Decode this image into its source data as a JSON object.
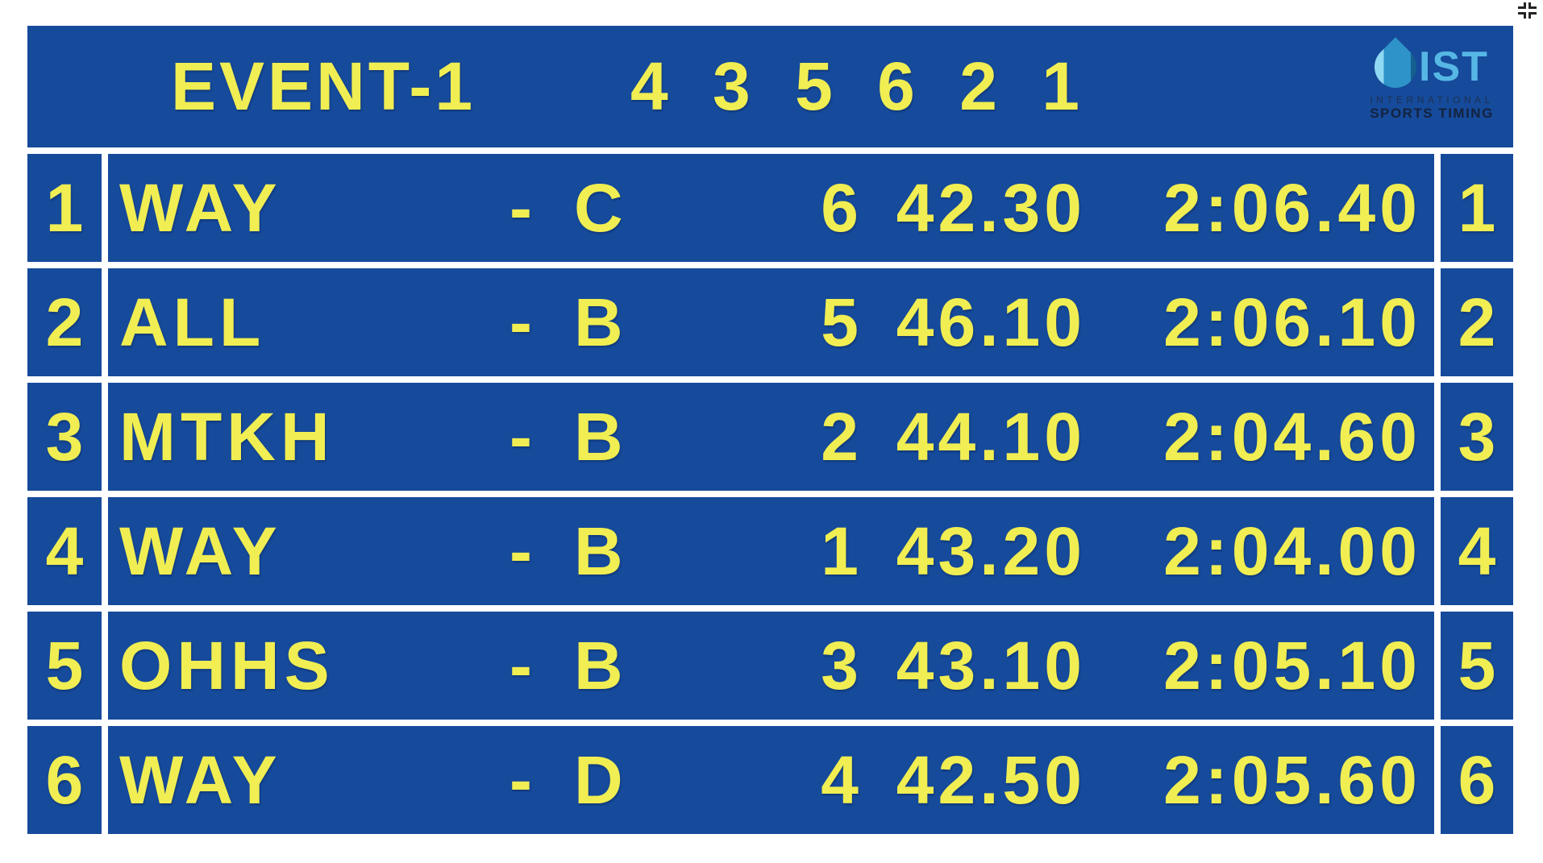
{
  "colors": {
    "board_background": "#164A9B",
    "board_text": "#F0EE52",
    "divider": "#FFFFFF",
    "logo_abbr_blue": "#56B7E5",
    "logo_text_navy": "#14233E"
  },
  "icons": {
    "corner_icon": "collapse-corners-icon",
    "logo_icon": "water-drop-icon"
  },
  "header": {
    "event_label": "EVENT-1",
    "lane_order": "4 3 5 6 2 1",
    "logo": {
      "abbr": "IST",
      "line1": "INTERNATIONAL",
      "line2": "SPORTS TIMING"
    }
  },
  "board": {
    "rows": [
      {
        "place": "1",
        "team": "WAY",
        "sep": "-",
        "squad": "C",
        "lane": "6",
        "split": "42.30",
        "time": "2:06.40",
        "position": "1"
      },
      {
        "place": "2",
        "team": "ALL",
        "sep": "-",
        "squad": "B",
        "lane": "5",
        "split": "46.10",
        "time": "2:06.10",
        "position": "2"
      },
      {
        "place": "3",
        "team": "MTKH",
        "sep": "-",
        "squad": "B",
        "lane": "2",
        "split": "44.10",
        "time": "2:04.60",
        "position": "3"
      },
      {
        "place": "4",
        "team": "WAY",
        "sep": "-",
        "squad": "B",
        "lane": "1",
        "split": "43.20",
        "time": "2:04.00",
        "position": "4"
      },
      {
        "place": "5",
        "team": "OHHS",
        "sep": "-",
        "squad": "B",
        "lane": "3",
        "split": "43.10",
        "time": "2:05.10",
        "position": "5"
      },
      {
        "place": "6",
        "team": "WAY",
        "sep": "-",
        "squad": "D",
        "lane": "4",
        "split": "42.50",
        "time": "2:05.60",
        "position": "6"
      }
    ]
  }
}
